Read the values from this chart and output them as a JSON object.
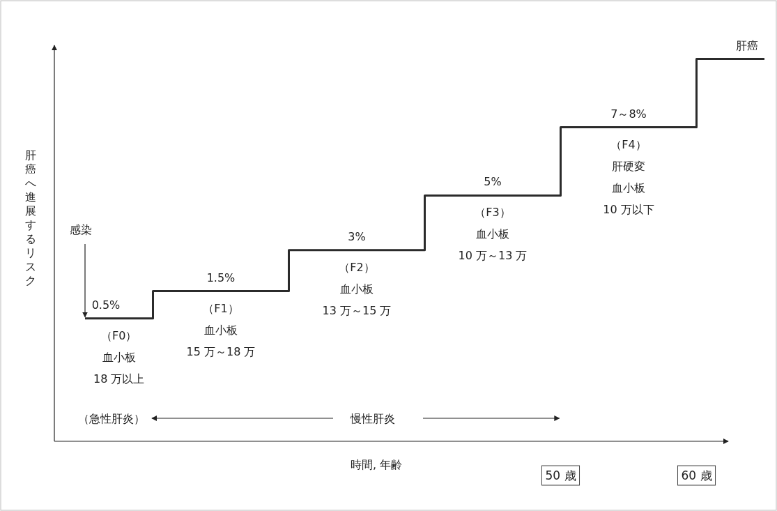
{
  "chart_data": {
    "type": "step",
    "color": "#2b2b2b",
    "xlabel": "時間, 年齢",
    "ylabel": "肝癌へ進展するリスク",
    "categories": [
      null,
      null,
      null,
      null,
      null,
      null
    ],
    "values": [
      0.5,
      1.5,
      3,
      5,
      7.5,
      10
    ],
    "value_labels": [
      "0.5%",
      "1.5%",
      "3%",
      "5%",
      "7～8%",
      "肝癌"
    ],
    "ylim": [
      -4,
      10.5
    ],
    "annotations": [
      "（F0）",
      "血小板",
      "18 万以上",
      "（F1）",
      "血小板",
      "15 万～18 万",
      "（F2）",
      "血小板",
      "13 万～15 万",
      "（F3）",
      "血小板",
      "10 万～13 万",
      "（F4）",
      "肝硬変",
      "血小板",
      "10 万以下",
      "感染",
      "（急性肝炎）",
      "慢性肝炎",
      "50 歳",
      "60 歳"
    ]
  }
}
